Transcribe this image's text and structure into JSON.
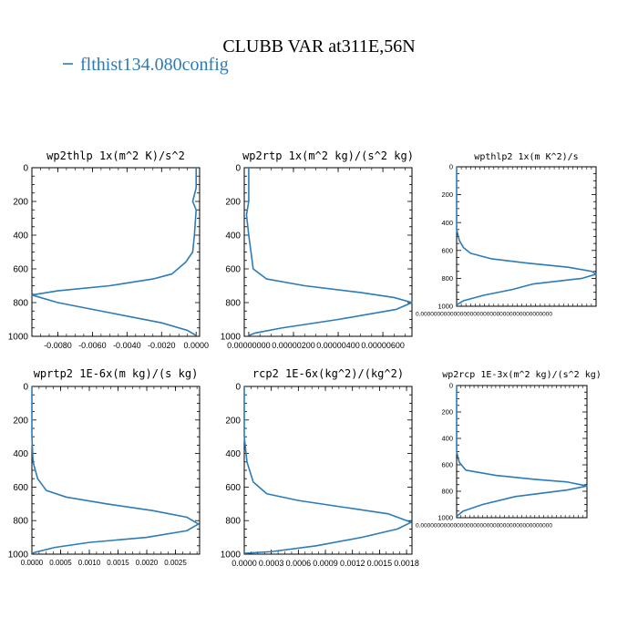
{
  "figure": {
    "title": "CLUBB VAR at311E,56N",
    "legend_label": "flthist134.080config",
    "line_color": "#2b7bb9"
  },
  "chart_data": [
    {
      "type": "line",
      "title": "wp2thlp  1x(m^2 K)/s^2",
      "xlim": [
        -0.0095,
        0.0002
      ],
      "ylim": [
        1000,
        0
      ],
      "xticks": [
        "-0.0080",
        "-0.0060",
        "-0.0040",
        "-0.0020",
        "0.0000"
      ],
      "xtick_values": [
        -0.008,
        -0.006,
        -0.004,
        -0.002,
        0.0
      ],
      "yticks": [
        "0",
        "200",
        "400",
        "600",
        "800",
        "1000"
      ],
      "series": [
        {
          "x": [
            0.0,
            0.0,
            -0.0002,
            0.0,
            -0.0001,
            -0.0002,
            -0.0006,
            -0.0014,
            -0.0025,
            -0.005,
            -0.008,
            -0.0095,
            -0.008,
            -0.005,
            -0.002,
            -0.0005,
            0.0
          ],
          "y": [
            0,
            120,
            200,
            250,
            400,
            500,
            560,
            630,
            660,
            700,
            730,
            755,
            800,
            860,
            920,
            965,
            995
          ]
        }
      ]
    },
    {
      "type": "line",
      "title": "wp2rtp  1x(m^2 kg)/(s^2 kg)",
      "xlim": [
        -2e-07,
        7.3e-06
      ],
      "ylim": [
        1000,
        0
      ],
      "xticks": [
        "0.00000000",
        "0.00000200",
        "0.00000400",
        "0.00000600"
      ],
      "xtick_values": [
        0.0,
        2e-06,
        4e-06,
        6e-06
      ],
      "yticks": [
        "0",
        "200",
        "400",
        "600",
        "800",
        "1000"
      ],
      "series": [
        {
          "x": [
            0.0,
            0.0,
            -1e-07,
            0.0,
            2e-07,
            8e-07,
            2.5e-06,
            5e-06,
            6.5e-06,
            7.3e-06,
            6.6e-06,
            4e-06,
            1.5e-06,
            3e-07,
            0.0
          ],
          "y": [
            0,
            200,
            280,
            400,
            600,
            660,
            700,
            740,
            770,
            800,
            840,
            900,
            950,
            980,
            995
          ]
        }
      ]
    },
    {
      "type": "line",
      "title": "wpthlp2  1x(m K^2)/s",
      "xlim": [
        0,
        1
      ],
      "ylim": [
        1000,
        0
      ],
      "xticks": [
        "0.0000000000000000000000000000000000000000"
      ],
      "xtick_values": [
        0.0
      ],
      "yticks": [
        "0",
        "200",
        "400",
        "600",
        "800",
        "1000"
      ],
      "series": [
        {
          "x": [
            0.0,
            0.0,
            0.02,
            0.05,
            0.1,
            0.25,
            0.5,
            0.8,
            0.97,
            1.0,
            0.9,
            0.55,
            0.4,
            0.2,
            0.05,
            0.0
          ],
          "y": [
            0,
            450,
            530,
            580,
            620,
            660,
            690,
            720,
            750,
            770,
            800,
            840,
            880,
            920,
            960,
            990
          ]
        }
      ]
    },
    {
      "type": "line",
      "title": "wprtp2  1E-6x(m kg)/(s kg)",
      "xlim": [
        0.0,
        0.00292
      ],
      "ylim": [
        1000,
        0
      ],
      "xticks": [
        "0.0000",
        "0.0005",
        "0.0010",
        "0.0015",
        "0.0020",
        "0.0025"
      ],
      "xtick_values": [
        0.0,
        0.0005,
        0.001,
        0.0015,
        0.002,
        0.0025
      ],
      "yticks": [
        "0",
        "200",
        "400",
        "600",
        "800",
        "1000"
      ],
      "series": [
        {
          "x": [
            0.0,
            0.0,
            2e-05,
            0.0001,
            0.00025,
            0.0006,
            0.0013,
            0.0021,
            0.0027,
            0.0029,
            0.0027,
            0.002,
            0.001,
            0.0004,
            0.0001,
            0.0
          ],
          "y": [
            0,
            300,
            450,
            550,
            620,
            660,
            700,
            740,
            780,
            820,
            860,
            900,
            930,
            960,
            985,
            995
          ]
        }
      ]
    },
    {
      "type": "line",
      "title": "rcp2  1E-6x(kg^2)/(kg^2)",
      "xlim": [
        0.0,
        0.00186
      ],
      "ylim": [
        1000,
        0
      ],
      "xticks": [
        "0.0000",
        "0.0003",
        "0.0006",
        "0.0009",
        "0.0012",
        "0.0015",
        "0.0018"
      ],
      "xtick_values": [
        0.0,
        0.0003,
        0.0006,
        0.0009,
        0.0012,
        0.0015,
        0.0018
      ],
      "yticks": [
        "0",
        "200",
        "400",
        "600",
        "800",
        "1000"
      ],
      "series": [
        {
          "x": [
            0.0,
            0.0,
            3e-05,
            0.0001,
            0.00025,
            0.0006,
            0.0011,
            0.0016,
            0.00185,
            0.0017,
            0.0013,
            0.0008,
            0.0003,
            0.0
          ],
          "y": [
            0,
            300,
            450,
            570,
            640,
            680,
            720,
            760,
            810,
            850,
            900,
            950,
            985,
            995
          ]
        }
      ]
    },
    {
      "type": "line",
      "title": "wp2rcp  1E-3x(m^2 kg)/(s^2 kg)",
      "xlim": [
        0,
        1
      ],
      "ylim": [
        1000,
        0
      ],
      "xticks": [
        "0.0000000000000000000000000000000000000000"
      ],
      "xtick_values": [
        0.0
      ],
      "yticks": [
        "0",
        "200",
        "400",
        "600",
        "800",
        "1000"
      ],
      "series": [
        {
          "x": [
            0.0,
            0.0,
            0.02,
            0.07,
            0.3,
            0.6,
            0.85,
            1.0,
            0.85,
            0.45,
            0.2,
            0.05,
            0.0
          ],
          "y": [
            0,
            500,
            580,
            640,
            680,
            710,
            730,
            760,
            790,
            840,
            900,
            950,
            990
          ]
        }
      ]
    }
  ]
}
